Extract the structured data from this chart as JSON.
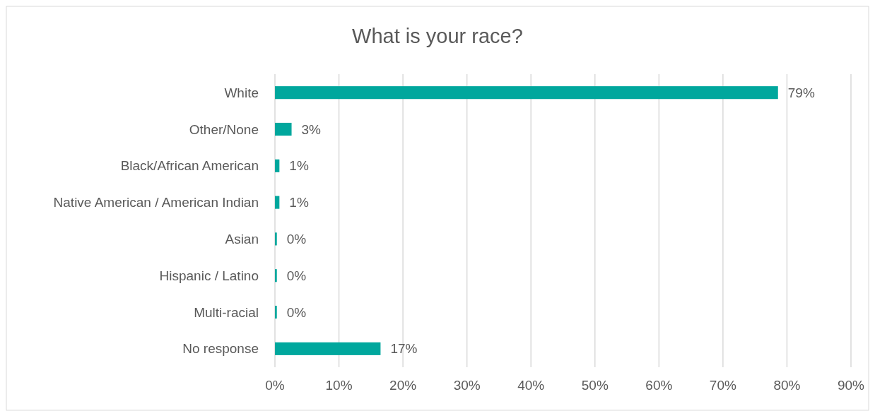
{
  "chart_data": {
    "type": "bar",
    "orientation": "horizontal",
    "title": "What is your race?",
    "categories": [
      "White",
      "Other/None",
      "Black/African American",
      "Native American / American Indian",
      "Asian",
      "Hispanic / Latino",
      "Multi-racial",
      "No response"
    ],
    "values": [
      78.6,
      2.6,
      0.7,
      0.7,
      0.3,
      0.3,
      0.3,
      16.5
    ],
    "value_labels": [
      "79%",
      "3%",
      "1%",
      "1%",
      "0%",
      "0%",
      "0%",
      "17%"
    ],
    "color": "#00a79d",
    "xlim": [
      0,
      90
    ],
    "xticks": [
      {
        "value": 0,
        "label": "0%"
      },
      {
        "value": 10,
        "label": "10%"
      },
      {
        "value": 20,
        "label": "20%"
      },
      {
        "value": 30,
        "label": "30%"
      },
      {
        "value": 40,
        "label": "40%"
      },
      {
        "value": 50,
        "label": "50%"
      },
      {
        "value": 60,
        "label": "60%"
      },
      {
        "value": 70,
        "label": "70%"
      },
      {
        "value": 80,
        "label": "80%"
      },
      {
        "value": 90,
        "label": "90%"
      }
    ],
    "grid": "x"
  }
}
